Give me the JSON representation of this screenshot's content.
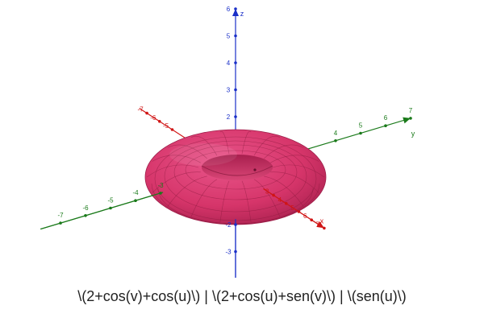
{
  "caption": "\\(2+cos(v)+cos(u)\\) | \\(2+cos(u)+sen(v)\\) | \\(sen(u)\\)",
  "axes": {
    "x": {
      "label": "x",
      "color": "#d01515",
      "ticks": [
        {
          "value": -7,
          "label": "-7"
        },
        {
          "value": -6,
          "label": "-6"
        },
        {
          "value": -5,
          "label": "-5"
        },
        {
          "value": 3,
          "label": "3"
        },
        {
          "value": 4,
          "label": "4"
        },
        {
          "value": 5,
          "label": "5"
        },
        {
          "value": 6,
          "label": "6"
        },
        {
          "value": 7,
          "label": "7"
        }
      ]
    },
    "y": {
      "label": "y",
      "color": "#1a7a1a",
      "ticks": [
        {
          "value": -7,
          "label": "-7"
        },
        {
          "value": -6,
          "label": "-6"
        },
        {
          "value": -5,
          "label": "-5"
        },
        {
          "value": -4,
          "label": "-4"
        },
        {
          "value": -3,
          "label": "-3"
        },
        {
          "value": 4,
          "label": "4"
        },
        {
          "value": 5,
          "label": "5"
        },
        {
          "value": 6,
          "label": "6"
        },
        {
          "value": 7,
          "label": "7"
        }
      ]
    },
    "z": {
      "label": "z",
      "color": "#1a2fc8",
      "ticks": [
        {
          "value": 6,
          "label": "6"
        },
        {
          "value": 5,
          "label": "5"
        },
        {
          "value": 4,
          "label": "4"
        },
        {
          "value": 3,
          "label": "3"
        },
        {
          "value": 2,
          "label": "2"
        },
        {
          "value": 1,
          "label": "1"
        },
        {
          "value": -2,
          "label": "-2"
        },
        {
          "value": -3,
          "label": "-3"
        }
      ]
    }
  },
  "surface": {
    "shape": "torus",
    "color": "#d6356a",
    "mesh_color": "#8a1a3e"
  }
}
